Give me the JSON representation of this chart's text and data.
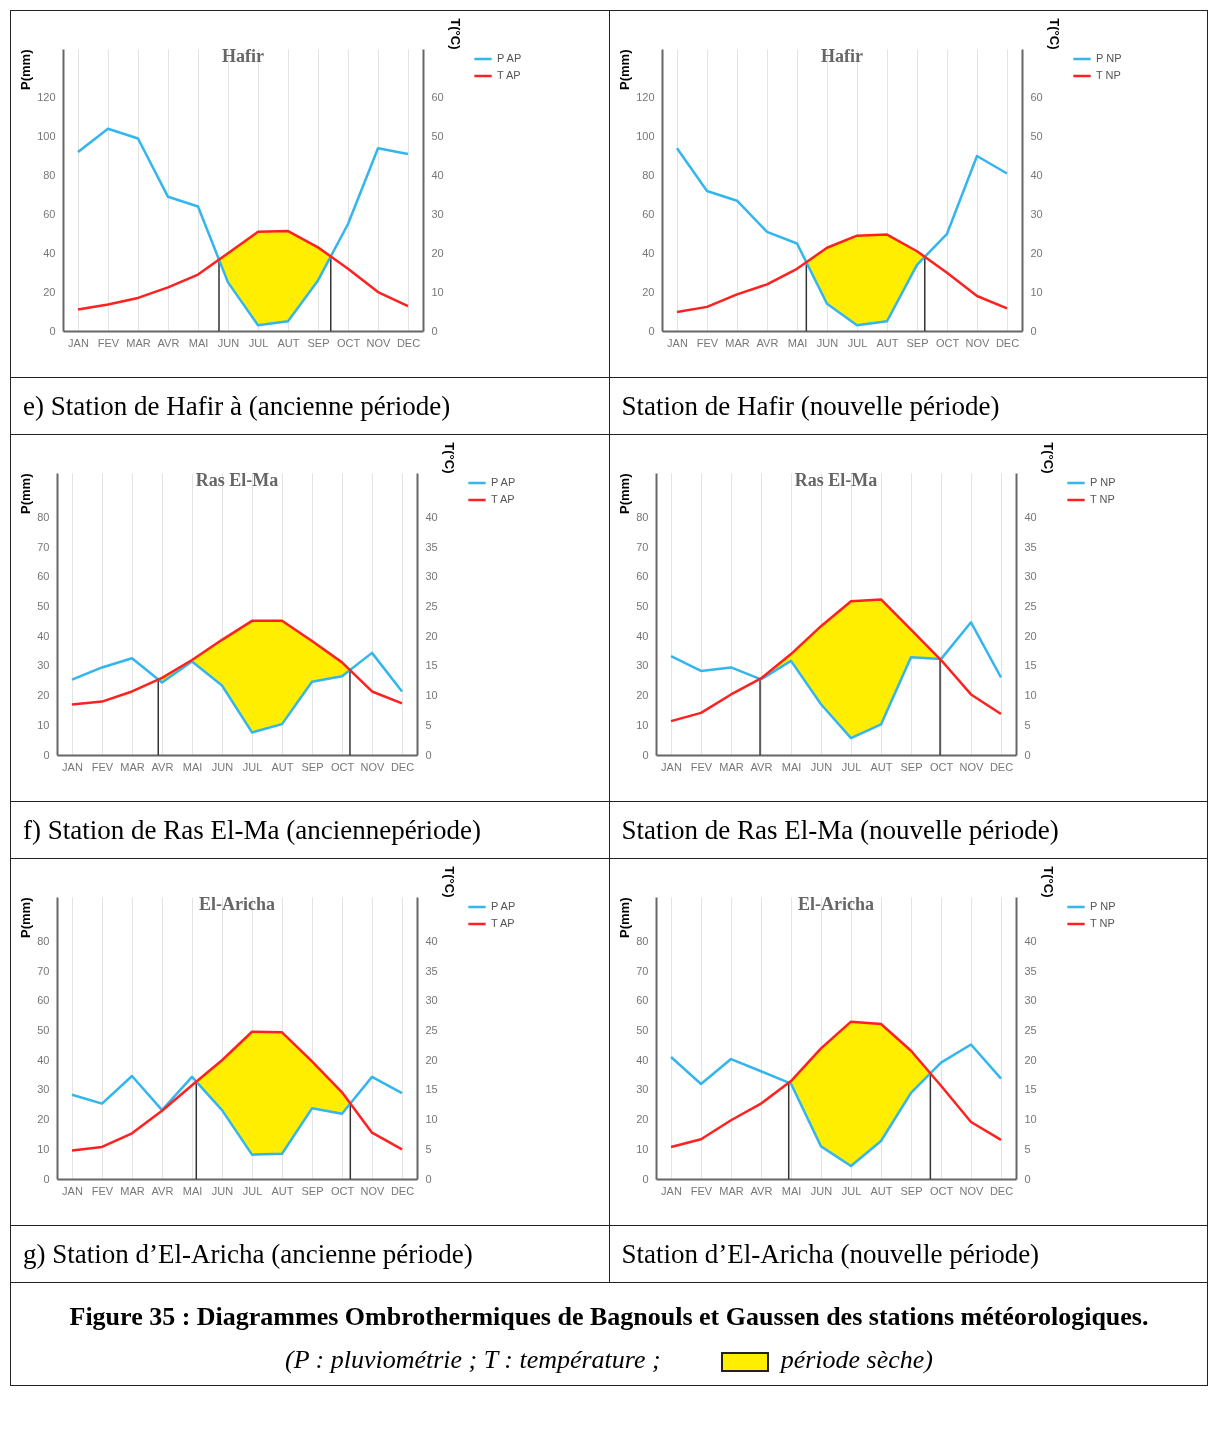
{
  "chart_data": [
    {
      "type": "line",
      "title": "Hafir",
      "ylabel": "P(mm)",
      "y2label": "T(°C)",
      "categories": [
        "JAN",
        "FEV",
        "MAR",
        "AVR",
        "MAI",
        "JUN",
        "JUL",
        "AUT",
        "SEP",
        "OCT",
        "NOV",
        "DEC"
      ],
      "series": [
        {
          "name": "P AP",
          "color": "#33b5ee",
          "values": [
            92,
            104,
            99,
            69,
            64,
            25,
            3,
            5,
            26,
            55,
            94,
            91
          ]
        },
        {
          "name": "T AP",
          "color": "#ff2020",
          "axis": "y2",
          "values": [
            5.5,
            6.8,
            8.5,
            11.2,
            14.5,
            20,
            25.5,
            25.7,
            21.5,
            16,
            10,
            6.4
          ]
        }
      ],
      "ylim": [
        0,
        145
      ],
      "yticks": [
        0,
        20,
        40,
        60,
        80,
        100,
        120
      ],
      "y2lim": [
        0,
        72.5
      ],
      "y2ticks": [
        0,
        10,
        20,
        30,
        40,
        50,
        60
      ],
      "grid": "x",
      "legend": "right",
      "annotations": [
        "e) Station de Hafir à (ancienne période)"
      ]
    },
    {
      "type": "line",
      "title": "Hafir",
      "ylabel": "P(mm)",
      "y2label": "T(°C)",
      "categories": [
        "JAN",
        "FEV",
        "MAR",
        "AVR",
        "MAI",
        "JUN",
        "JUL",
        "AUT",
        "SEP",
        "OCT",
        "NOV",
        "DEC"
      ],
      "series": [
        {
          "name": "P NP",
          "color": "#33b5ee",
          "values": [
            94,
            72,
            67,
            51,
            45,
            14,
            3,
            5,
            34,
            50,
            90,
            81
          ]
        },
        {
          "name": "T NP",
          "color": "#ff2020",
          "axis": "y2",
          "values": [
            4.9,
            6.2,
            9.4,
            12,
            16,
            21.4,
            24.5,
            24.8,
            20.5,
            15,
            9,
            5.8
          ]
        }
      ],
      "ylim": [
        0,
        145
      ],
      "yticks": [
        0,
        20,
        40,
        60,
        80,
        100,
        120
      ],
      "y2lim": [
        0,
        72.5
      ],
      "y2ticks": [
        0,
        10,
        20,
        30,
        40,
        50,
        60
      ],
      "grid": "x",
      "legend": "right",
      "annotations": [
        "Station de Hafir (nouvelle période)"
      ]
    },
    {
      "type": "line",
      "title": "Ras El-Ma",
      "ylabel": "P(mm)",
      "y2label": "T(°C)",
      "categories": [
        "JAN",
        "FEV",
        "MAR",
        "AVR",
        "MAI",
        "JUN",
        "JUL",
        "AUT",
        "SEP",
        "OCT",
        "NOV",
        "DEC"
      ],
      "series": [
        {
          "name": "P AP",
          "color": "#33b5ee",
          "values": [
            25.4,
            29.5,
            32.6,
            24.4,
            31.5,
            23.4,
            7.6,
            10.4,
            24.7,
            26.5,
            34.4,
            21.4
          ]
        },
        {
          "name": "T AP",
          "color": "#ff2020",
          "axis": "y2",
          "values": [
            8.5,
            9,
            10.7,
            13,
            16,
            19.4,
            22.6,
            22.6,
            19.2,
            15.6,
            10.7,
            8.7
          ]
        }
      ],
      "ylim": [
        0,
        95
      ],
      "yticks": [
        0,
        10,
        20,
        30,
        40,
        50,
        60,
        70,
        80
      ],
      "y2lim": [
        0,
        47.5
      ],
      "y2ticks": [
        0,
        5,
        10,
        15,
        20,
        25,
        30,
        35,
        40
      ],
      "grid": "x",
      "legend": "right",
      "annotations": [
        "f) Station de Ras El-Ma (anciennepériode)"
      ]
    },
    {
      "type": "line",
      "title": "Ras El-Ma",
      "ylabel": "P(mm)",
      "y2label": "T(°C)",
      "categories": [
        "JAN",
        "FEV",
        "MAR",
        "AVR",
        "MAI",
        "JUN",
        "JUL",
        "AUT",
        "SEP",
        "OCT",
        "NOV",
        "DEC"
      ],
      "series": [
        {
          "name": "P NP",
          "color": "#33b5ee",
          "values": [
            33.3,
            28.3,
            29.5,
            25.5,
            31.7,
            17.1,
            5.7,
            10.3,
            32.9,
            32.3,
            44.7,
            26.1
          ]
        },
        {
          "name": "T NP",
          "color": "#ff2020",
          "axis": "y2",
          "values": [
            5.7,
            7.1,
            10.2,
            12.9,
            17,
            21.7,
            25.9,
            26.2,
            21.1,
            16,
            10.2,
            6.9
          ]
        }
      ],
      "ylim": [
        0,
        95
      ],
      "yticks": [
        0,
        10,
        20,
        30,
        40,
        50,
        60,
        70,
        80
      ],
      "y2lim": [
        0,
        47.5
      ],
      "y2ticks": [
        0,
        5,
        10,
        15,
        20,
        25,
        30,
        35,
        40
      ],
      "grid": "x",
      "legend": "right",
      "annotations": [
        "Station de Ras El-Ma (nouvelle période)"
      ]
    },
    {
      "type": "line",
      "title": "El-Aricha",
      "ylabel": "P(mm)",
      "y2label": "T(°C)",
      "categories": [
        "JAN",
        "FEV",
        "MAR",
        "AVR",
        "MAI",
        "JUN",
        "JUL",
        "AUT",
        "SEP",
        "OCT",
        "NOV",
        "DEC"
      ],
      "series": [
        {
          "name": "P AP",
          "color": "#33b5ee",
          "values": [
            28.4,
            25.4,
            34.7,
            23.2,
            34.4,
            23.2,
            8.2,
            8.5,
            23.8,
            22,
            34.4,
            28.9
          ]
        },
        {
          "name": "T AP",
          "color": "#ff2020",
          "axis": "y2",
          "values": [
            4.8,
            5.4,
            7.7,
            11.5,
            15.8,
            20,
            24.8,
            24.7,
            19.8,
            14.6,
            7.8,
            5
          ]
        }
      ],
      "ylim": [
        0,
        95
      ],
      "yticks": [
        0,
        10,
        20,
        30,
        40,
        50,
        60,
        70,
        80
      ],
      "y2lim": [
        0,
        47.5
      ],
      "y2ticks": [
        0,
        5,
        10,
        15,
        20,
        25,
        30,
        35,
        40
      ],
      "grid": "x",
      "legend": "right",
      "annotations": [
        "g) Station d’El-Aricha (ancienne période)"
      ]
    },
    {
      "type": "line",
      "title": "El-Aricha",
      "ylabel": "P(mm)",
      "y2label": "T(°C)",
      "categories": [
        "JAN",
        "FEV",
        "MAR",
        "AVR",
        "MAI",
        "JUN",
        "JUL",
        "AUT",
        "SEP",
        "OCT",
        "NOV",
        "DEC"
      ],
      "series": [
        {
          "name": "P NP",
          "color": "#33b5ee",
          "values": [
            41.1,
            32,
            40.4,
            36.3,
            32.1,
            11,
            4.4,
            12.8,
            29,
            39.2,
            45.3,
            33.8
          ]
        },
        {
          "name": "T NP",
          "color": "#ff2020",
          "axis": "y2",
          "values": [
            5.4,
            6.7,
            9.9,
            12.7,
            16.5,
            22,
            26.5,
            26.1,
            21.6,
            15.7,
            9.6,
            6.6
          ]
        }
      ],
      "ylim": [
        0,
        95
      ],
      "yticks": [
        0,
        10,
        20,
        30,
        40,
        50,
        60,
        70,
        80
      ],
      "y2lim": [
        0,
        47.5
      ],
      "y2ticks": [
        0,
        5,
        10,
        15,
        20,
        25,
        30,
        35,
        40
      ],
      "grid": "x",
      "legend": "right",
      "annotations": [
        "Station d’El-Aricha  (nouvelle période)",
        "Figure 35 : Diagrammes Ombrothermiques de Bagnouls et Gaussen des stations météorologiques.",
        "(P : pluviométrie ; T : température ;",
        "période sèche)"
      ]
    }
  ]
}
